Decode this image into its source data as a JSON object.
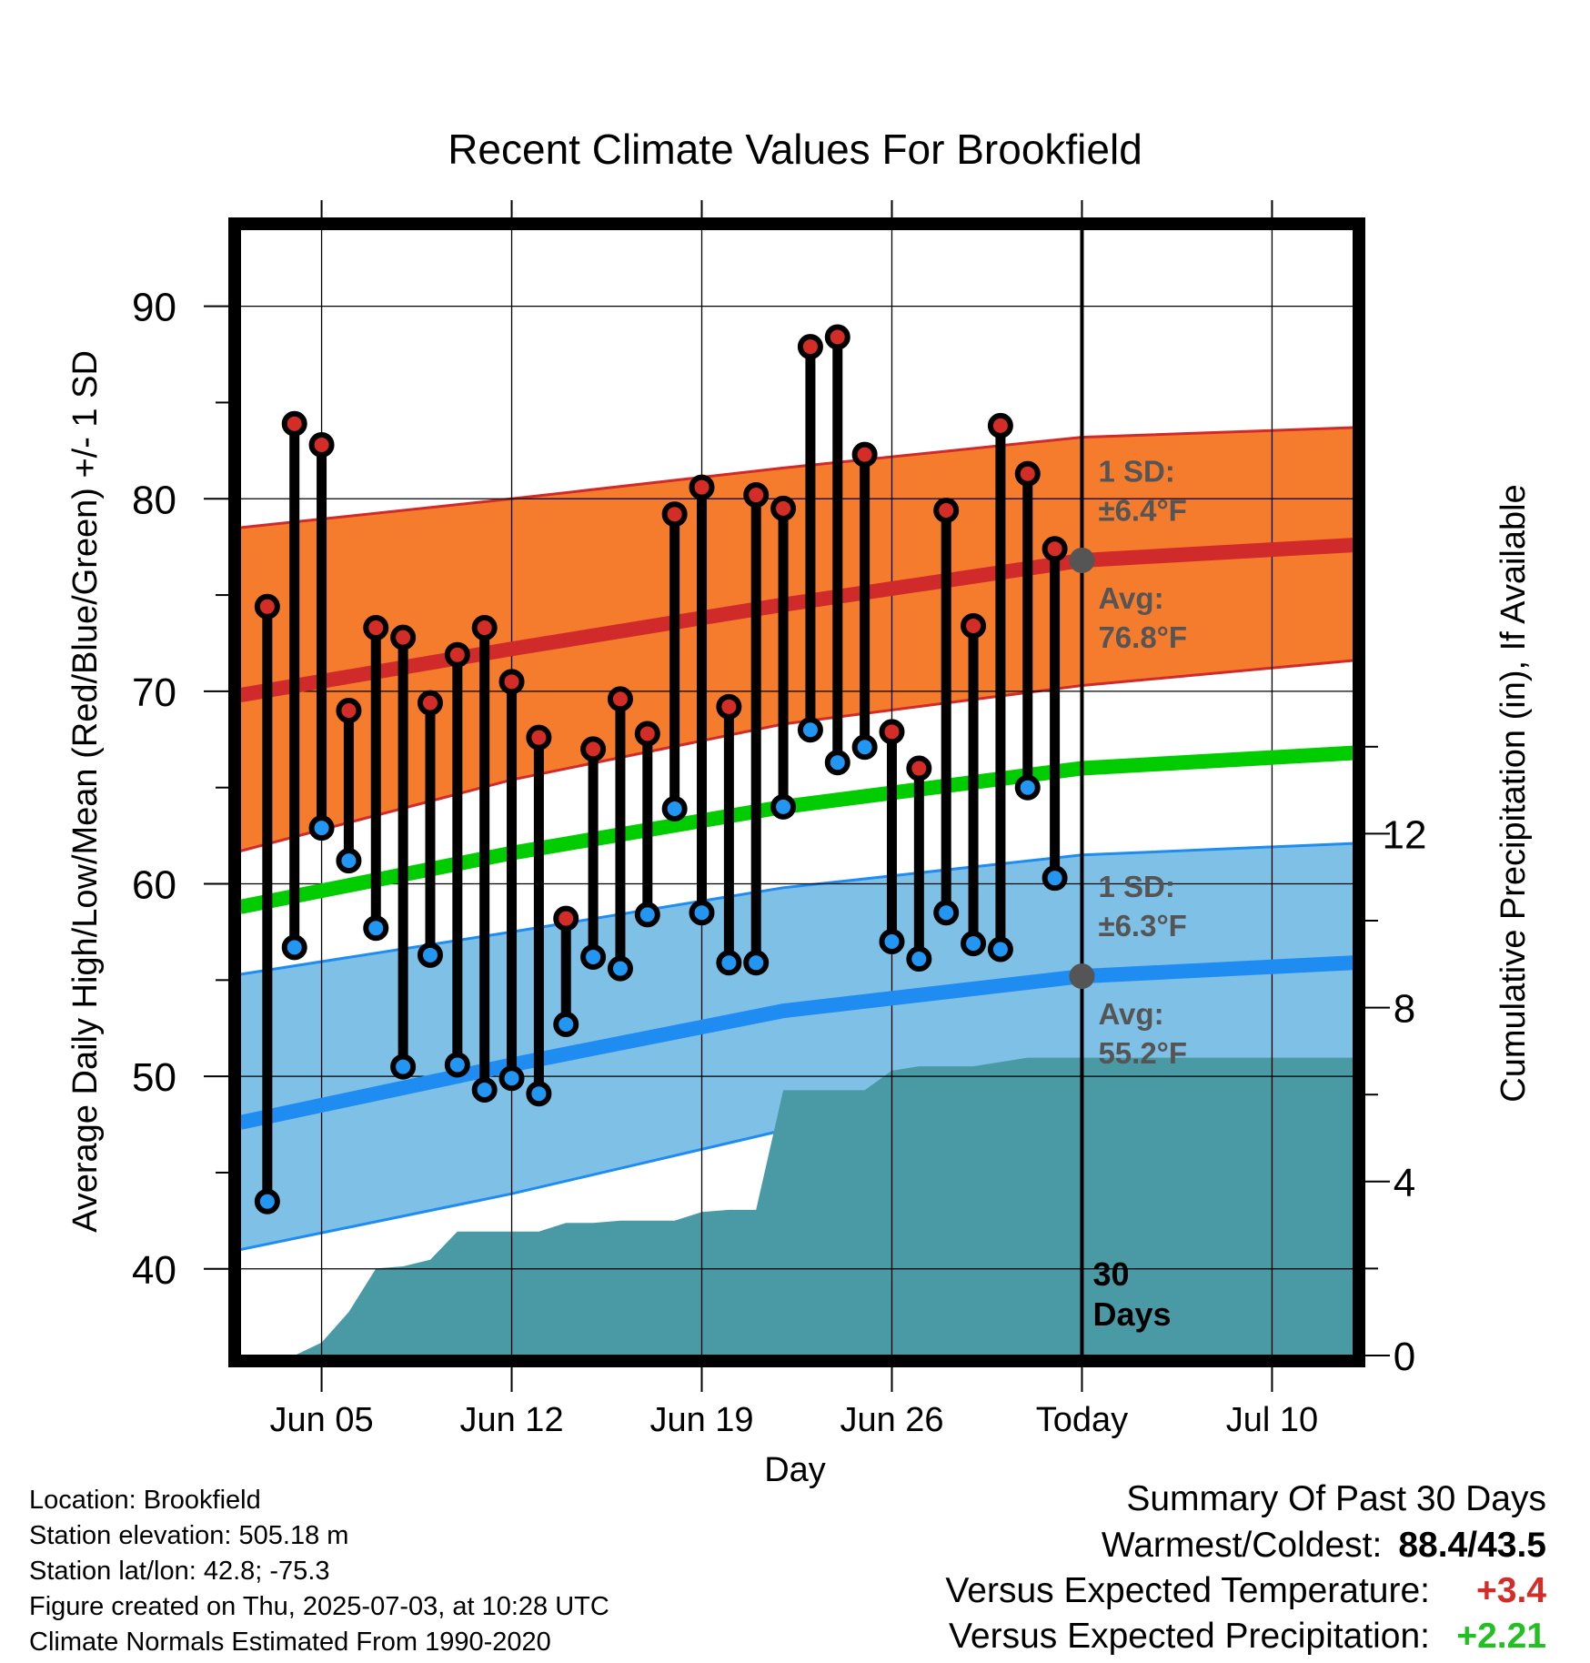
{
  "chart_data": {
    "type": "line",
    "title": "Recent Climate Values For Brookfield",
    "xlabel": "Day",
    "ylabel_left": "Average Daily High/Low/Mean (Red/Blue/Green) +/- 1 SD",
    "ylabel_right": "Cumulative Precipitation (in), If Available",
    "y_ticks": [
      "40",
      "50",
      "60",
      "70",
      "80",
      "90"
    ],
    "y2_ticks": [
      "0",
      "4",
      "8",
      "12"
    ],
    "x_ticks": [
      "Jun 05",
      "Jun 12",
      "Jun 19",
      "Jun 26",
      "Today",
      "Jul 10"
    ],
    "ylim": [
      35.5,
      94
    ],
    "y2lim": [
      0,
      25.9
    ],
    "x_day_range": [
      "2025-06-02",
      "2025-07-13"
    ],
    "grid": true,
    "today_line": {
      "date": "2025-07-03",
      "label": "30 Days"
    },
    "colors": {
      "high_band": "#F57B2D",
      "high_avg": "#D12A2A",
      "low_band": "#7EC0E6",
      "low_avg": "#1E8CF0",
      "mean": "#00CC00",
      "precip": "#4A9AA5",
      "high_marker": "#D42C26",
      "low_marker": "#2196F3",
      "annotation": "#555555",
      "positive_temp": "#D42C26",
      "positive_precip": "#22C022"
    },
    "normals": {
      "dates": [
        "2025-06-02",
        "2025-06-12",
        "2025-06-22",
        "2025-07-03",
        "2025-07-13"
      ],
      "high_avg": [
        69.8,
        72.2,
        74.5,
        76.8,
        77.6
      ],
      "high_sd_lower": [
        61.7,
        65.4,
        68.3,
        70.3,
        71.6
      ],
      "high_sd_upper": [
        78.5,
        80.0,
        81.6,
        83.2,
        83.7
      ],
      "low_avg": [
        47.6,
        50.6,
        53.4,
        55.2,
        55.9
      ],
      "low_sd_lower": [
        41.0,
        43.9,
        47.2,
        49.0,
        49.6
      ],
      "low_sd_upper": [
        55.3,
        57.5,
        59.8,
        61.5,
        62.1
      ],
      "mean": [
        58.8,
        61.6,
        64.0,
        66.0,
        66.8
      ]
    },
    "annotations": [
      {
        "text_top": "1 SD:",
        "text_bottom": "±6.4°F"
      },
      {
        "text_top": "Avg:",
        "text_bottom": "76.8°F"
      },
      {
        "text_top": "1 SD:",
        "text_bottom": "±6.3°F"
      },
      {
        "text_top": "Avg:",
        "text_bottom": "55.2°F"
      }
    ],
    "daily": {
      "dates": [
        "2025-06-03",
        "2025-06-04",
        "2025-06-05",
        "2025-06-06",
        "2025-06-07",
        "2025-06-08",
        "2025-06-09",
        "2025-06-10",
        "2025-06-11",
        "2025-06-12",
        "2025-06-13",
        "2025-06-14",
        "2025-06-15",
        "2025-06-16",
        "2025-06-17",
        "2025-06-18",
        "2025-06-19",
        "2025-06-20",
        "2025-06-21",
        "2025-06-22",
        "2025-06-23",
        "2025-06-24",
        "2025-06-25",
        "2025-06-26",
        "2025-06-27",
        "2025-06-28",
        "2025-06-29",
        "2025-06-30",
        "2025-07-01",
        "2025-07-02"
      ],
      "high": [
        74.4,
        83.9,
        82.8,
        69.0,
        73.3,
        72.8,
        69.4,
        71.9,
        73.3,
        70.5,
        67.6,
        58.2,
        67.0,
        69.6,
        67.8,
        79.2,
        80.6,
        69.2,
        80.2,
        79.5,
        87.9,
        88.4,
        82.3,
        67.9,
        66.0,
        79.4,
        73.4,
        83.8,
        81.3,
        77.4
      ],
      "low": [
        43.5,
        56.7,
        62.9,
        61.2,
        57.7,
        50.5,
        56.3,
        50.6,
        49.3,
        49.9,
        49.1,
        52.7,
        56.2,
        55.6,
        58.4,
        63.9,
        58.5,
        55.9,
        55.9,
        64.0,
        68.0,
        66.3,
        67.1,
        57.0,
        56.1,
        58.5,
        56.9,
        56.6,
        65.0,
        60.3
      ]
    },
    "precip": {
      "dates": [
        "2025-06-02",
        "2025-06-03",
        "2025-06-04",
        "2025-06-05",
        "2025-06-06",
        "2025-06-07",
        "2025-06-08",
        "2025-06-09",
        "2025-06-10",
        "2025-06-11",
        "2025-06-12",
        "2025-06-13",
        "2025-06-14",
        "2025-06-15",
        "2025-06-16",
        "2025-06-17",
        "2025-06-18",
        "2025-06-19",
        "2025-06-20",
        "2025-06-21",
        "2025-06-22",
        "2025-06-23",
        "2025-06-24",
        "2025-06-25",
        "2025-06-26",
        "2025-06-27",
        "2025-06-28",
        "2025-06-29",
        "2025-06-30",
        "2025-07-01",
        "2025-07-02",
        "2025-07-03",
        "2025-07-13"
      ],
      "values": [
        0,
        0,
        0,
        0.3,
        1.0,
        2.0,
        2.05,
        2.2,
        2.85,
        2.85,
        2.85,
        2.85,
        3.05,
        3.05,
        3.1,
        3.1,
        3.1,
        3.3,
        3.35,
        3.35,
        6.1,
        6.1,
        6.1,
        6.1,
        6.55,
        6.65,
        6.65,
        6.65,
        6.75,
        6.85,
        6.85,
        6.85,
        6.85
      ]
    }
  },
  "info": {
    "location": "Location: Brookfield",
    "elevation": "Station elevation: 505.18 m",
    "latlon": "Station lat/lon: 42.8; -75.3",
    "created": "Figure created on Thu, 2025-07-03, at 10:28 UTC",
    "normals": "Climate Normals Estimated From 1990-2020"
  },
  "summary": {
    "title": "Summary Of Past 30 Days",
    "warmest_label": "Warmest/Coldest:",
    "warmest_value": "88.4/43.5",
    "temp_label": "Versus Expected Temperature:",
    "temp_value": "+3.4",
    "precip_label": "Versus Expected Precipitation:",
    "precip_value": "+2.21"
  }
}
